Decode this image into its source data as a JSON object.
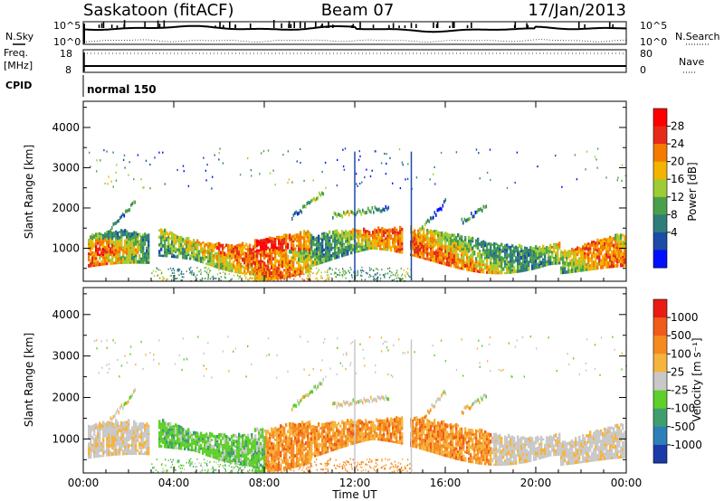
{
  "header": {
    "station": "Saskatoon (fitACF)",
    "beam": "Beam 07",
    "date": "17/Jan/2013"
  },
  "side_labels": {
    "nsky": "N.Sky",
    "freq_line1": "Freq.",
    "freq_line2": "[MHz]",
    "cpid": "CPID",
    "nsearch": "N.Search",
    "nave": "Nave"
  },
  "cpid_mode": "normal 150",
  "noise_panel": {
    "ytick_top": "10^5",
    "ytick_bottom": "10^0",
    "rtick_top": "10^5",
    "rtick_bottom": "10^0"
  },
  "freq_panel": {
    "ytick_top": "18",
    "ytick_bottom": "8",
    "rtick_top": "80",
    "rtick_bottom": "0"
  },
  "chart_data": [
    {
      "type": "heatmap",
      "name": "power",
      "ylabel": "Slant Range [km]",
      "yticks": [
        1000,
        2000,
        3000,
        4000
      ],
      "ylim": [
        180,
        4650
      ],
      "colorbar_label": "Power [dB]",
      "colorbar_ticks": [
        "28",
        "24",
        "20",
        "16",
        "12",
        "8",
        "4"
      ],
      "colors": [
        "#0010ff",
        "#1c4ca6",
        "#2f7d7a",
        "#4aa04a",
        "#9fcc35",
        "#f2b400",
        "#f47a00",
        "#e62a1a",
        "#ff0000"
      ]
    },
    {
      "type": "heatmap",
      "name": "velocity",
      "ylabel": "Slant Range [km]",
      "yticks": [
        1000,
        2000,
        3000,
        4000
      ],
      "ylim": [
        180,
        4650
      ],
      "colorbar_label": "Velocity [m s⁻¹]",
      "colorbar_ticks": [
        "1000",
        "500",
        "100",
        "25",
        "-25",
        "-100",
        "-500",
        "-1000"
      ],
      "colors": [
        "#1a3aa8",
        "#2c7fb8",
        "#3f9e6e",
        "#5fcf2a",
        "#c8c8c8",
        "#f6b33d",
        "#f58a1f",
        "#f05a1a",
        "#e81c12"
      ]
    }
  ],
  "x_axis": {
    "ticks": [
      "00:00",
      "04:00",
      "08:00",
      "12:00",
      "16:00",
      "20:00",
      "00:00"
    ],
    "label": "Time UT",
    "range_hours": [
      0,
      24
    ]
  }
}
